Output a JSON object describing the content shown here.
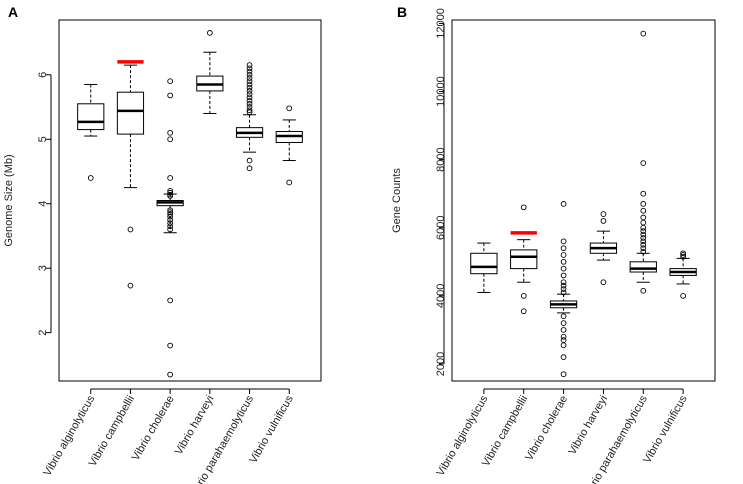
{
  "chart_data": [
    {
      "type": "box",
      "panel": "A",
      "ylabel": "Genome Size (Mb)",
      "ylim": [
        1.25,
        6.85
      ],
      "yticks": [
        2,
        3,
        4,
        5,
        6
      ],
      "categories": [
        "Vibrio alginolyticus",
        "Vibrio campbellii",
        "Vibrio cholerae",
        "Vibrio harveyi",
        "Vibrio parahaemolyticus",
        "Vibrio vulnificus"
      ],
      "boxes": [
        {
          "min": 5.05,
          "q1": 5.15,
          "median": 5.27,
          "q3": 5.55,
          "max": 5.85,
          "outliers": [
            4.4
          ]
        },
        {
          "min": 4.25,
          "q1": 5.08,
          "median": 5.44,
          "q3": 5.73,
          "max": 6.15,
          "outliers": [
            3.6,
            2.73
          ]
        },
        {
          "min": 3.55,
          "q1": 3.97,
          "median": 4.02,
          "q3": 4.05,
          "max": 4.15,
          "outliers": [
            5.9,
            5.68,
            5.1,
            5.0,
            4.4,
            4.2,
            4.17,
            4.14,
            4.12,
            3.9,
            3.87,
            3.84,
            3.8,
            3.75,
            3.7,
            3.65,
            3.6,
            2.5,
            1.8,
            1.35
          ]
        },
        {
          "min": 5.4,
          "q1": 5.75,
          "median": 5.85,
          "q3": 5.98,
          "max": 6.35,
          "outliers": [
            6.65
          ]
        },
        {
          "min": 4.8,
          "q1": 5.03,
          "median": 5.1,
          "q3": 5.18,
          "max": 5.38,
          "outliers": [
            6.15,
            6.1,
            6.05,
            6.0,
            5.95,
            5.9,
            5.85,
            5.8,
            5.75,
            5.7,
            5.65,
            5.6,
            5.55,
            5.5,
            5.45,
            5.42,
            4.67,
            4.55
          ]
        },
        {
          "min": 4.67,
          "q1": 4.95,
          "median": 5.05,
          "q3": 5.12,
          "max": 5.3,
          "outliers": [
            5.48,
            4.33
          ]
        }
      ],
      "highlight": {
        "category": "Vibrio campbellii",
        "value": 6.2,
        "color": "#ff0000"
      }
    },
    {
      "type": "box",
      "panel": "B",
      "ylabel": "Gene Counts",
      "ylim": [
        1500,
        12100
      ],
      "yticks": [
        2000,
        4000,
        6000,
        8000,
        10000,
        12000
      ],
      "categories": [
        "Vibrio alginolyticus",
        "Vibrio campbellii",
        "Vibrio cholerae",
        "Vibrio harveyi",
        "Vibrio parahaemolyticus",
        "Vibrio vulnificus"
      ],
      "boxes": [
        {
          "min": 4100,
          "q1": 4650,
          "median": 4850,
          "q3": 5250,
          "max": 5550,
          "outliers": []
        },
        {
          "min": 4400,
          "q1": 4800,
          "median": 5150,
          "q3": 5350,
          "max": 5650,
          "outliers": [
            6600,
            4000,
            3550
          ]
        },
        {
          "min": 3500,
          "q1": 3650,
          "median": 3750,
          "q3": 3850,
          "max": 4050,
          "outliers": [
            6700,
            5600,
            5400,
            5200,
            5000,
            4800,
            4600,
            4400,
            4300,
            4200,
            4100,
            3400,
            3200,
            3000,
            2800,
            2700,
            2550,
            2200,
            1700
          ]
        },
        {
          "min": 5050,
          "q1": 5250,
          "median": 5400,
          "q3": 5550,
          "max": 5900,
          "outliers": [
            6400,
            6200,
            4400
          ]
        },
        {
          "min": 4400,
          "q1": 4700,
          "median": 4800,
          "q3": 5000,
          "max": 5250,
          "outliers": [
            11700,
            7900,
            7000,
            6700,
            6500,
            6300,
            6150,
            6000,
            5900,
            5800,
            5700,
            5600,
            5500,
            5400,
            5300,
            4150
          ]
        },
        {
          "min": 4350,
          "q1": 4600,
          "median": 4700,
          "q3": 4800,
          "max": 5100,
          "outliers": [
            5250,
            5200,
            5150,
            4000
          ]
        }
      ],
      "highlight": {
        "category": "Vibrio campbellii",
        "value": 5850,
        "color": "#ff0000"
      }
    }
  ]
}
